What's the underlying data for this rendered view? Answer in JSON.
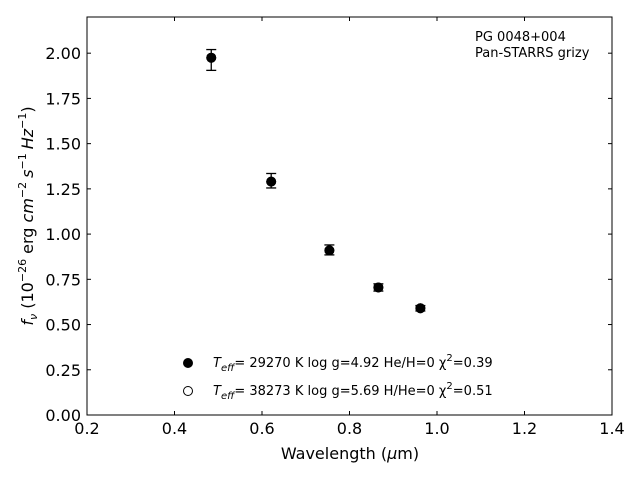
{
  "chart_data": {
    "type": "scatter",
    "title": "",
    "xlabel": "Wavelength (μm)",
    "ylabel": "fν (10⁻²⁶ erg cm⁻² s⁻¹ Hz⁻¹)",
    "xlim": [
      0.2,
      1.4
    ],
    "ylim": [
      0.0,
      2.2
    ],
    "xticks": [
      "0.2",
      "0.4",
      "0.6",
      "0.8",
      "1.0",
      "1.2",
      "1.4"
    ],
    "yticks": [
      "0.00",
      "0.25",
      "0.50",
      "0.75",
      "1.00",
      "1.25",
      "1.50",
      "1.75",
      "2.00"
    ],
    "annotation": [
      "PG 0048+004",
      "Pan-STARRS grizy"
    ],
    "legend_position": "lower-center",
    "series": [
      {
        "name": "T_eff= 29270 K  log g=4.92  He/H=0  χ²=0.39",
        "marker": "filled-circle",
        "x": [
          0.484,
          0.621,
          0.754,
          0.866,
          0.962
        ],
        "y": [
          1.975,
          1.29,
          0.91,
          0.705,
          0.59
        ]
      },
      {
        "name": "T_eff= 38273 K  log g=5.69  H/He=0  χ²=0.51",
        "marker": "open-circle",
        "x": [
          0.484,
          0.621,
          0.754,
          0.866,
          0.962
        ],
        "y": [
          1.975,
          1.29,
          0.91,
          0.705,
          0.59
        ]
      }
    ],
    "observed": {
      "x": [
        0.484,
        0.621,
        0.754,
        0.866,
        0.962
      ],
      "y_top": [
        2.02,
        1.335,
        0.94,
        0.725,
        0.605
      ],
      "y_bottom": [
        1.905,
        1.255,
        0.885,
        0.685,
        0.575
      ]
    }
  },
  "legend": {
    "entries": [
      {
        "teff_label": "T",
        "teff_sub": "eff",
        "rest": "= 29270 K  log g=4.92  He/H=0  χ",
        "sup": "2",
        "tail": "=0.39"
      },
      {
        "teff_label": "T",
        "teff_sub": "eff",
        "rest": "= 38273 K  log g=5.69  H/He=0  χ",
        "sup": "2",
        "tail": "=0.51"
      }
    ]
  },
  "ylabel_parts": {
    "f": "f",
    "nu": "ν",
    "p1": " (10",
    "e1": "−26",
    "p2": " erg ",
    "cm": "cm",
    "e2": "−2",
    "s": "s",
    "e3": "−1",
    "hz": "Hz",
    "e4": "−1",
    "p3": ")"
  },
  "xlabel_parts": {
    "a": "Wavelength (",
    "mu": "μ",
    "b": "m)"
  }
}
